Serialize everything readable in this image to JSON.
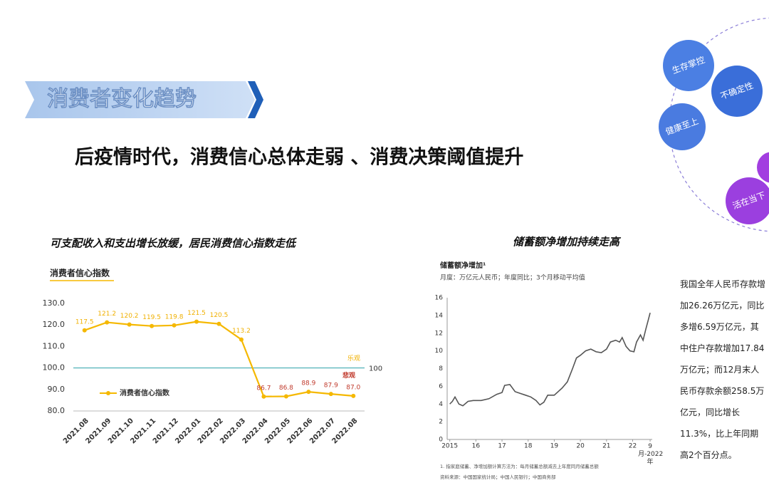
{
  "banner": "消费者变化趋势",
  "headline": "后疫情时代，消费信心总体走弱 、消费决策阈值提升",
  "bubbles": [
    "生存掌控",
    "不确定性",
    "健康至上",
    "活在当下"
  ],
  "side_text": "我国全年人民币存款增加26.26万亿元，同比多增6.59万亿元，其中住户存款增加17.84万亿元；而12月末人民币存款余额258.5万亿元，同比增长11.3%，比上年同期高2个百分点。",
  "chart_data": [
    {
      "type": "line",
      "title": "可支配收入和支出增长放缓，居民消费信心指数走低",
      "subtitle": "消费者信心指数",
      "categories": [
        "2021.08",
        "2021.09",
        "2021.10",
        "2021.11",
        "2021.12",
        "2022.01",
        "2022.02",
        "2022.03",
        "2022.04",
        "2022.05",
        "2022.06",
        "2022.07",
        "2022.08"
      ],
      "series": [
        {
          "name": "消费者信心指数",
          "color": "#f5b800",
          "values": [
            117.5,
            121.2,
            120.2,
            119.5,
            119.8,
            121.5,
            120.5,
            113.2,
            86.7,
            86.8,
            88.9,
            87.9,
            87.0
          ],
          "value_labels": [
            "117.5",
            "121.2",
            "120.2",
            "119.5",
            "119.8",
            "121.5",
            "120.5",
            "113.2",
            "86.7",
            "86.8",
            "88.9",
            "87.9",
            "87.0"
          ]
        }
      ],
      "ylim": [
        80,
        130
      ],
      "yticks": [
        {
          "value": 80,
          "label": "80.0"
        },
        {
          "value": 90,
          "label": "90.0"
        },
        {
          "value": 100,
          "label": "100.0"
        },
        {
          "value": 110,
          "label": "110.0"
        },
        {
          "value": 120,
          "label": "120.0"
        },
        {
          "value": 130,
          "label": "130.0"
        }
      ],
      "reference_line": 100,
      "reference_color": "#2aa0a8",
      "annotations": [
        {
          "text": "乐观",
          "color": "#f0b000"
        },
        {
          "text": "悲观",
          "color": "#c0392b"
        }
      ],
      "label_colors": [
        "#f0b000",
        "#c0392b"
      ]
    },
    {
      "type": "line",
      "title": "储蓄额净增加持续走高",
      "subtitle": "储蓄额净增加¹",
      "note": "月度：万亿元人民币；年度同比；3个月移动平均值",
      "x": [
        2015.0,
        2015.1,
        2015.2,
        2015.35,
        2015.5,
        2015.7,
        2015.9,
        2016.2,
        2016.5,
        2016.8,
        2017.0,
        2017.1,
        2017.3,
        2017.5,
        2017.7,
        2017.9,
        2018.1,
        2018.3,
        2018.45,
        2018.6,
        2018.75,
        2019.0,
        2019.3,
        2019.5,
        2019.7,
        2019.85,
        2020.0,
        2020.2,
        2020.4,
        2020.6,
        2020.8,
        2021.0,
        2021.15,
        2021.35,
        2021.5,
        2021.6,
        2021.75,
        2021.9,
        2022.05,
        2022.15,
        2022.3,
        2022.4,
        2022.5,
        2022.6,
        2022.67
      ],
      "series": [
        {
          "color": "#555555",
          "values": [
            4.0,
            4.3,
            4.8,
            4.0,
            3.8,
            4.3,
            4.4,
            4.4,
            4.6,
            5.1,
            5.3,
            6.1,
            6.2,
            5.4,
            5.2,
            5.0,
            4.8,
            4.4,
            3.9,
            4.2,
            5.0,
            5.0,
            5.8,
            6.5,
            8.0,
            9.2,
            9.5,
            10.0,
            10.2,
            9.9,
            9.8,
            10.2,
            11.0,
            11.2,
            11.0,
            11.5,
            10.5,
            10.0,
            9.9,
            11.0,
            11.8,
            11.2,
            12.4,
            13.5,
            14.3
          ]
        }
      ],
      "xlim": [
        2014.9,
        2022.75
      ],
      "xticks": [
        2015,
        {
          "value": 2016,
          "label": "16"
        },
        {
          "value": 2017,
          "label": "17"
        },
        {
          "value": 2018,
          "label": "18"
        },
        {
          "value": 2019,
          "label": "19"
        },
        {
          "value": 2020,
          "label": "20"
        },
        {
          "value": 2021,
          "label": "21"
        },
        {
          "value": 2022,
          "label": "22"
        },
        {
          "value": 2022.67,
          "label": "9月-2022年"
        }
      ],
      "ylim": [
        0,
        16
      ],
      "yticks": [
        0,
        2,
        4,
        6,
        8,
        10,
        12,
        14,
        16
      ],
      "footnotes": [
        "1. 指家庭储蓄、净增加额计算方法为：每月储蓄总额减去上年度同月储蓄总额",
        "资料来源：中国国家统计局；中国人民银行；中国商务部"
      ]
    }
  ]
}
